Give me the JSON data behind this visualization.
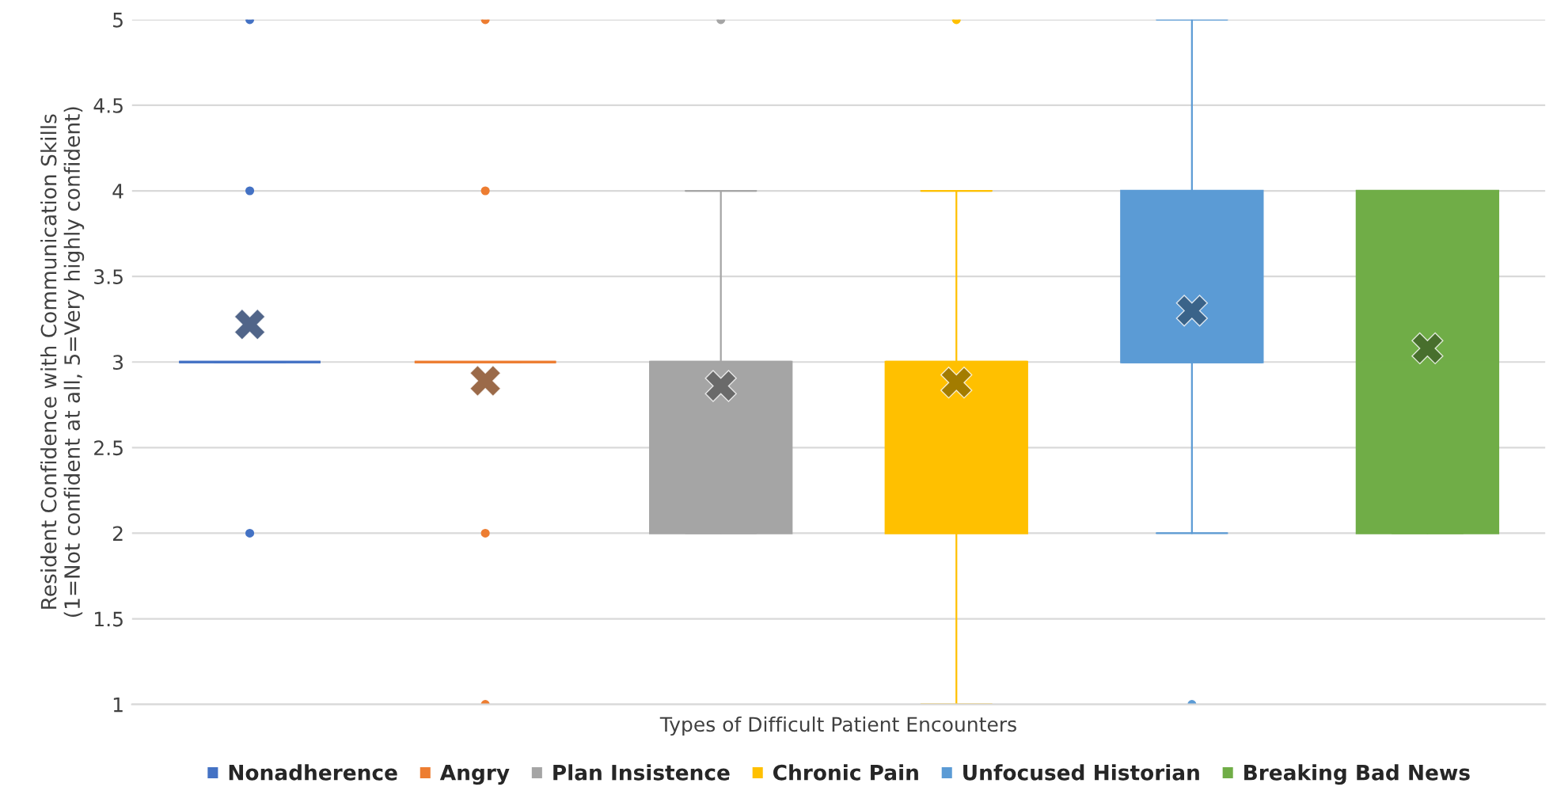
{
  "chart_data": {
    "type": "box",
    "xlabel": "Types of Difficult Patient Encounters",
    "ylabel": "Resident Confidence with Communication Skills\n(1=Not confident at all, 5=Very highly confident)",
    "categories": [
      null,
      null,
      null,
      null,
      null,
      null
    ],
    "ylim": [
      1,
      5
    ],
    "yticks": [
      1,
      1.5,
      2,
      2.5,
      3,
      3.5,
      4,
      4.5,
      5
    ],
    "grid": "y",
    "legend": "bottom",
    "marker": "cross",
    "series": [
      {
        "name": "Nonadherence",
        "color": "#4472c4",
        "boxes": [
          {
            "low": 3,
            "q1": 3,
            "median": 3,
            "q3": 3,
            "high": 3,
            "mean": 3.22,
            "outliers": [
              2,
              4,
              5
            ]
          },
          null,
          null,
          null,
          null,
          null
        ]
      },
      {
        "name": "Angry",
        "color": "#ed7d31",
        "boxes": [
          null,
          {
            "low": 3,
            "q1": 3,
            "median": 3,
            "q3": 3,
            "high": 3,
            "mean": 2.89,
            "outliers": [
              1,
              2,
              4,
              5
            ]
          },
          null,
          null,
          null,
          null
        ]
      },
      {
        "name": "Plan Insistence",
        "color": "#a5a5a5",
        "boxes": [
          null,
          null,
          {
            "low": 2,
            "q1": 2,
            "median": 3,
            "q3": 3,
            "high": 4,
            "mean": 2.86,
            "outliers": [
              5
            ]
          },
          null,
          null,
          null
        ]
      },
      {
        "name": "Chronic Pain",
        "color": "#ffc000",
        "boxes": [
          null,
          null,
          null,
          {
            "low": 1,
            "q1": 2,
            "median": 3,
            "q3": 3,
            "high": 4,
            "mean": 2.88,
            "outliers": [
              5
            ]
          },
          null,
          null
        ]
      },
      {
        "name": "Unfocused Historian",
        "color": "#5b9bd5",
        "boxes": [
          null,
          null,
          null,
          null,
          {
            "low": 2,
            "q1": 3,
            "median": 3,
            "q3": 4,
            "high": 5,
            "mean": 3.3,
            "outliers": [
              1
            ]
          },
          null
        ]
      },
      {
        "name": "Breaking Bad News",
        "color": "#70ad47",
        "boxes": [
          null,
          null,
          null,
          null,
          null,
          {
            "low": 2,
            "q1": 2,
            "median": 3,
            "q3": 4,
            "high": 4,
            "mean": 3.08
          }
        ]
      }
    ]
  }
}
